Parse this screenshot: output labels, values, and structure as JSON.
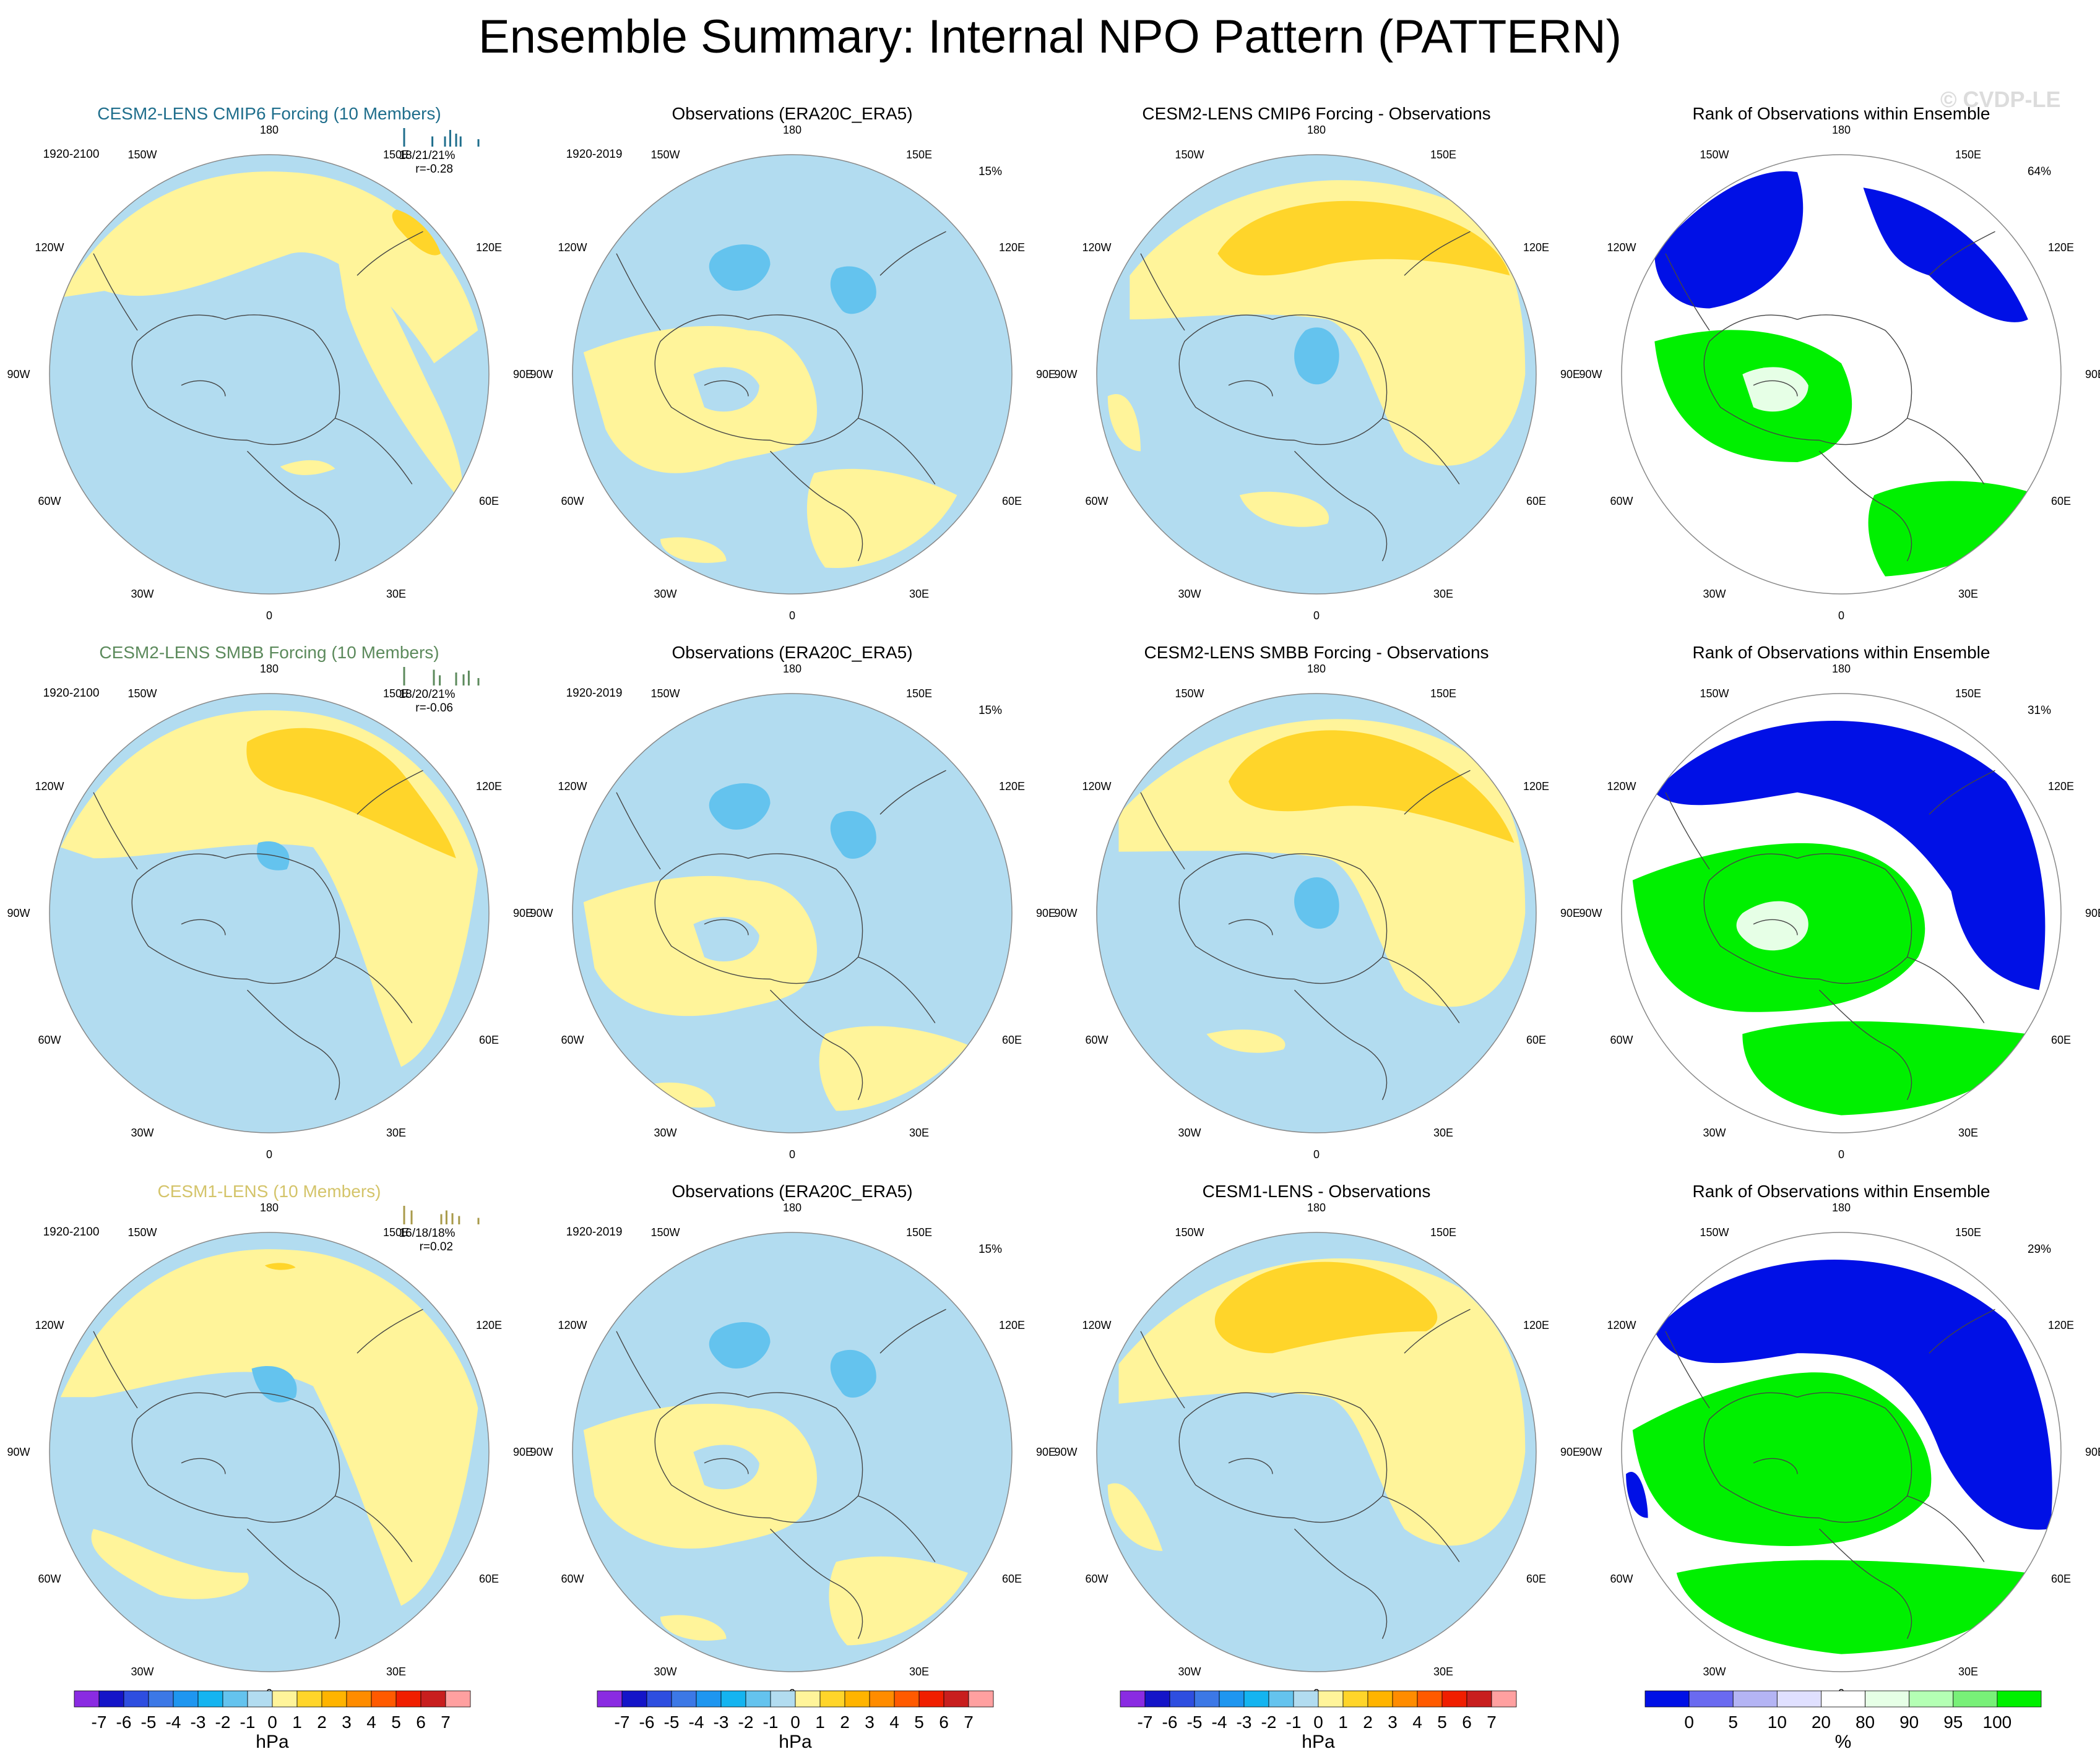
{
  "title": "Ensemble Summary: Internal NPO Pattern (PATTERN)",
  "watermark": "© CVDP-LE",
  "lon_labels": [
    "180",
    "150E",
    "120E",
    "90E",
    "60E",
    "30E",
    "0",
    "30W",
    "60W",
    "90W",
    "120W",
    "150W"
  ],
  "colors": {
    "neg_1_to_0": "#b2dcf0",
    "neg_2_to_1": "#64c3ee",
    "pos_0_to_1": "#fff49a",
    "pos_1_to_2": "#ffd52a",
    "rank_lt5": "#0010e6",
    "rank_80_90": "#e6ffe6",
    "rank_gt95": "#00f000",
    "rank_90_95": "#b4ffb4",
    "rank_10_20": "#e0e0ff",
    "coast": "#444444"
  },
  "chart_data": [
    {
      "row": 0,
      "col": 0,
      "type": "map",
      "id": "r0c0",
      "title": "CESM2-LENS CMIP6 Forcing (10 Members)",
      "title_color": "#1f6e8c",
      "period": "1920-2100",
      "stats": "18/21/21%",
      "corr": "r=-0.28",
      "hist_color": "#1f6e8c",
      "hist_bars": [
        {
          "x": 0.0,
          "h": 1.0
        },
        {
          "x": 0.38,
          "h": 0.55
        },
        {
          "x": 0.55,
          "h": 0.55
        },
        {
          "x": 0.62,
          "h": 0.9
        },
        {
          "x": 0.7,
          "h": 0.7
        },
        {
          "x": 0.76,
          "h": 0.55
        },
        {
          "x": 1.0,
          "h": 0.4
        }
      ]
    },
    {
      "row": 0,
      "col": 1,
      "type": "map",
      "id": "r0c1",
      "title": "Observations (ERA20C_ERA5)",
      "period": "1920-2019",
      "pct": "15%"
    },
    {
      "row": 0,
      "col": 2,
      "type": "map",
      "id": "r0c2",
      "title": "CESM2-LENS CMIP6 Forcing - Observations"
    },
    {
      "row": 0,
      "col": 3,
      "type": "rank",
      "id": "r0c3",
      "title": "Rank of Observations within Ensemble",
      "pct": "64%"
    },
    {
      "row": 1,
      "col": 0,
      "type": "map",
      "id": "r1c0",
      "title": "CESM2-LENS SMBB Forcing (10 Members)",
      "title_color": "#5c8a5c",
      "period": "1920-2100",
      "stats": "18/20/21%",
      "corr": "r=-0.06",
      "hist_color": "#5c8a5c",
      "hist_bars": [
        {
          "x": 0.0,
          "h": 1.0
        },
        {
          "x": 0.4,
          "h": 0.85
        },
        {
          "x": 0.48,
          "h": 0.55
        },
        {
          "x": 0.7,
          "h": 0.7
        },
        {
          "x": 0.8,
          "h": 0.6
        },
        {
          "x": 0.87,
          "h": 0.8
        },
        {
          "x": 1.0,
          "h": 0.4
        }
      ]
    },
    {
      "row": 1,
      "col": 1,
      "type": "map",
      "id": "r1c1",
      "title": "Observations (ERA20C_ERA5)",
      "period": "1920-2019",
      "pct": "15%"
    },
    {
      "row": 1,
      "col": 2,
      "type": "map",
      "id": "r1c2",
      "title": "CESM2-LENS SMBB Forcing - Observations"
    },
    {
      "row": 1,
      "col": 3,
      "type": "rank",
      "id": "r1c3",
      "title": "Rank of Observations within Ensemble",
      "pct": "31%"
    },
    {
      "row": 2,
      "col": 0,
      "type": "map",
      "id": "r2c0",
      "title": "CESM1-LENS (10 Members)",
      "title_color": "#d4c46a",
      "period": "1920-2100",
      "stats": "16/18/18%",
      "corr": "r=0.02",
      "hist_color": "#a89a4a",
      "hist_bars": [
        {
          "x": 0.0,
          "h": 1.0
        },
        {
          "x": 0.1,
          "h": 0.75
        },
        {
          "x": 0.5,
          "h": 0.55
        },
        {
          "x": 0.57,
          "h": 0.75
        },
        {
          "x": 0.65,
          "h": 0.6
        },
        {
          "x": 0.74,
          "h": 0.45
        },
        {
          "x": 1.0,
          "h": 0.35
        }
      ]
    },
    {
      "row": 2,
      "col": 1,
      "type": "map",
      "id": "r2c1",
      "title": "Observations (ERA20C_ERA5)",
      "period": "1920-2019",
      "pct": "15%"
    },
    {
      "row": 2,
      "col": 2,
      "type": "map",
      "id": "r2c2",
      "title": "CESM1-LENS - Observations"
    },
    {
      "row": 2,
      "col": 3,
      "type": "rank",
      "id": "r2c3",
      "title": "Rank of Observations within Ensemble",
      "pct": "29%"
    }
  ],
  "colorbar_hpa": {
    "unit": "hPa",
    "labels": [
      "-7",
      "-6",
      "-5",
      "-4",
      "-3",
      "-2",
      "-1",
      "0",
      "1",
      "2",
      "3",
      "4",
      "5",
      "6",
      "7"
    ],
    "colors": [
      "#8a2be2",
      "#1414c8",
      "#2e4ee0",
      "#3c78e6",
      "#1e96f0",
      "#14b4f0",
      "#64c3ee",
      "#b2dcf0",
      "#fff49a",
      "#ffd52a",
      "#ffb400",
      "#ff8c00",
      "#ff5a00",
      "#f01e00",
      "#c81e1e",
      "#ffa0a0"
    ]
  },
  "colorbar_rank": {
    "unit": "%",
    "labels": [
      "0",
      "5",
      "10",
      "20",
      "80",
      "90",
      "95",
      "100"
    ],
    "colors": [
      "#0010e6",
      "#6a6af0",
      "#b4b4f4",
      "#e0e0ff",
      "#ffffff",
      "#e6ffe6",
      "#b4ffb4",
      "#78f078",
      "#00f000"
    ]
  }
}
